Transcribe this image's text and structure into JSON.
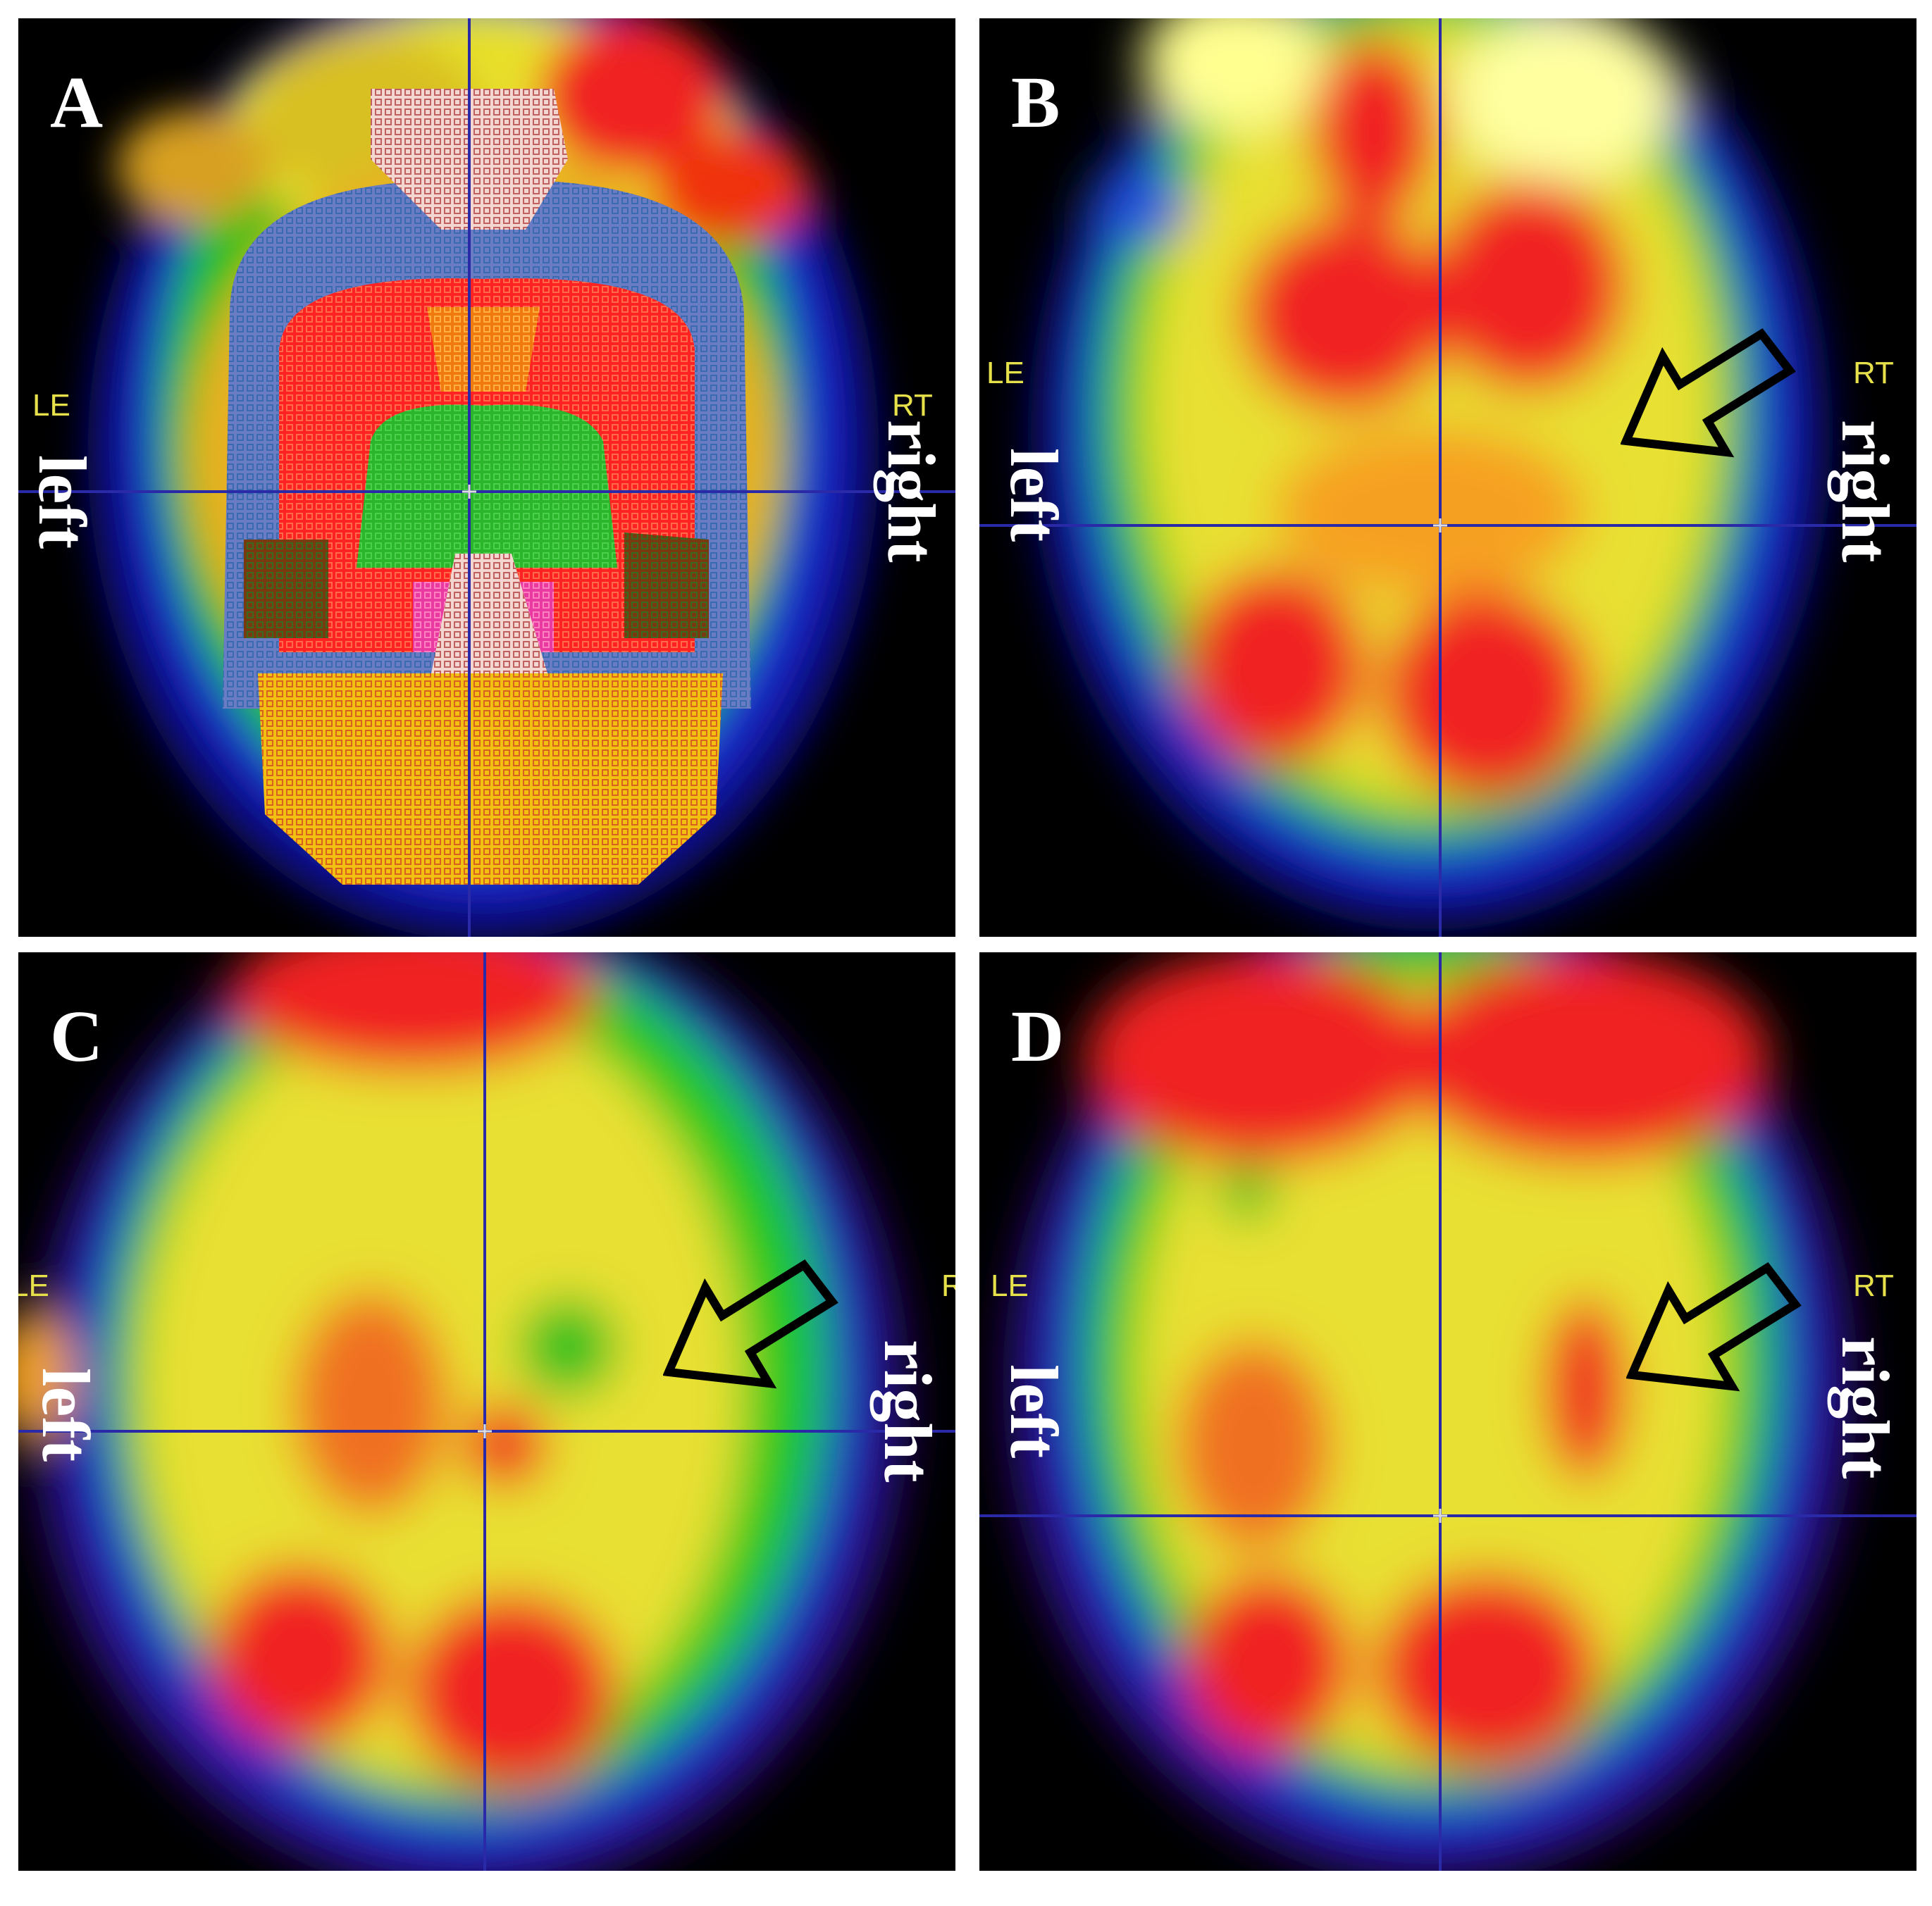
{
  "panels": [
    {
      "id": "A",
      "letter": "A",
      "left_small": "LE",
      "right_small": "RT",
      "left_big": "left",
      "right_big": "right",
      "arrow": false
    },
    {
      "id": "B",
      "letter": "B",
      "left_small": "LE",
      "right_small": "RT",
      "left_big": "left",
      "right_big": "right",
      "arrow": true
    },
    {
      "id": "C",
      "letter": "C",
      "left_small": "LE",
      "right_small": "R",
      "left_big": "left",
      "right_big": "right",
      "arrow": true
    },
    {
      "id": "D",
      "letter": "D",
      "left_small": "LE",
      "right_small": "RT",
      "left_big": "left",
      "right_big": "right",
      "arrow": true
    }
  ],
  "colors": {
    "background": "#000000",
    "crosshair": "#2a2aa8",
    "label_small": "#e6e14a",
    "label_big": "#ffffff",
    "arrow_outline": "#000000"
  }
}
